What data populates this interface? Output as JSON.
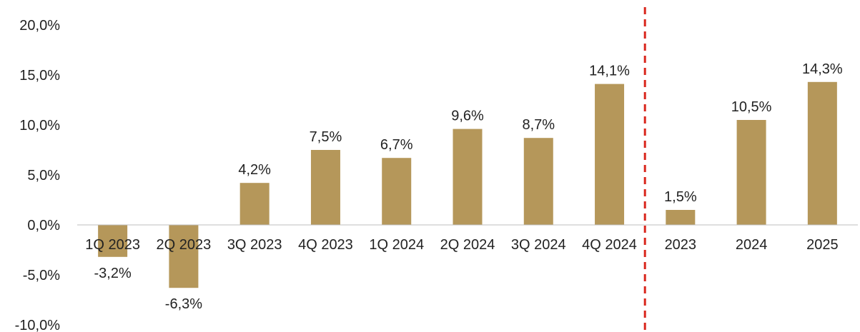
{
  "chart_data": {
    "type": "bar",
    "categories": [
      "1Q 2023",
      "2Q 2023",
      "3Q 2023",
      "4Q 2023",
      "1Q 2024",
      "2Q 2024",
      "3Q 2024",
      "4Q 2024",
      "2023",
      "2024",
      "2025"
    ],
    "values": [
      -3.2,
      -6.3,
      4.2,
      7.5,
      6.7,
      9.6,
      8.7,
      14.1,
      1.5,
      10.5,
      14.3
    ],
    "data_labels": [
      "-3,2%",
      "-6,3%",
      "4,2%",
      "7,5%",
      "6,7%",
      "9,6%",
      "8,7%",
      "14,1%",
      "1,5%",
      "10,5%",
      "14,3%"
    ],
    "y_ticks": [
      20,
      15,
      10,
      5,
      0,
      -5,
      -10
    ],
    "y_tick_labels": [
      "20,0%",
      "15,0%",
      "10,0%",
      "5,0%",
      "0,0%",
      "-5,0%",
      "-10,0%"
    ],
    "ylim": [
      -10,
      20
    ],
    "title": "",
    "xlabel": "",
    "ylabel": "",
    "grid": false,
    "legend": "none",
    "divider_after_category": "4Q 2024",
    "colors": {
      "bar": "#B5975A",
      "divider": "#D9261C",
      "axis": "#BFBFBF",
      "text": "#222222"
    }
  }
}
